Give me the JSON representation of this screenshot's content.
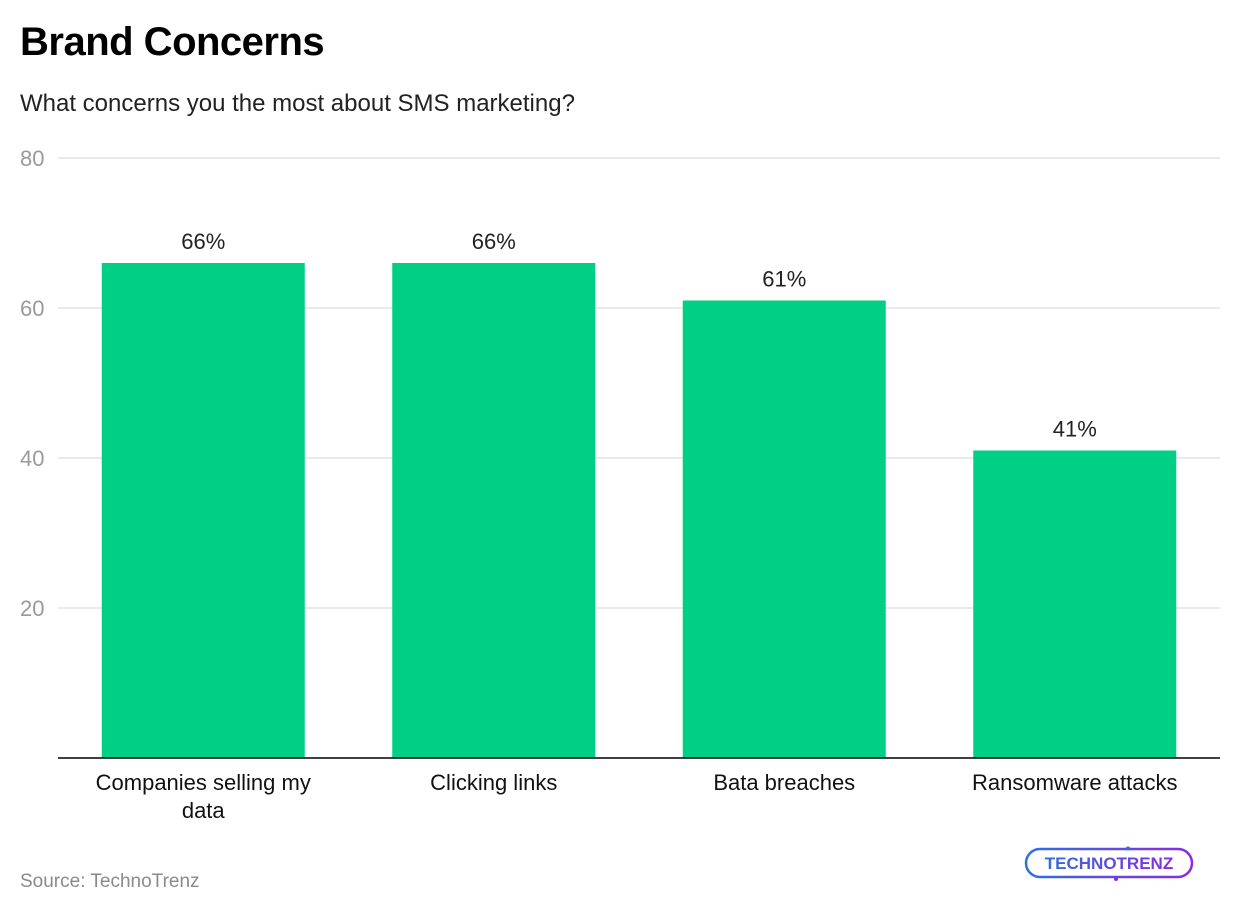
{
  "header": {
    "title": "Brand Concerns",
    "subtitle": "What concerns you the most about SMS marketing?"
  },
  "footer": {
    "source": "Source: TechnoTrenz",
    "logo_text": "TECHNOTRENZ"
  },
  "colors": {
    "bar": "#00CF86",
    "grid": "#e3e3e3",
    "axis": "#000000",
    "tick_label": "#9a9a9a",
    "logo_blue": "#2f6fe0",
    "logo_purple": "#8a2be2"
  },
  "chart_data": {
    "type": "bar",
    "title": "Brand Concerns",
    "subtitle": "What concerns you the most about SMS marketing?",
    "categories": [
      "Companies selling my data",
      "Clicking links",
      "Bata breaches",
      "Ransomware attacks"
    ],
    "values": [
      66,
      66,
      61,
      41
    ],
    "data_labels": [
      "66%",
      "66%",
      "61%",
      "41%"
    ],
    "ylim": [
      0,
      80
    ],
    "yticks": [
      20,
      40,
      60,
      80
    ],
    "grid": true,
    "legend": "none"
  }
}
